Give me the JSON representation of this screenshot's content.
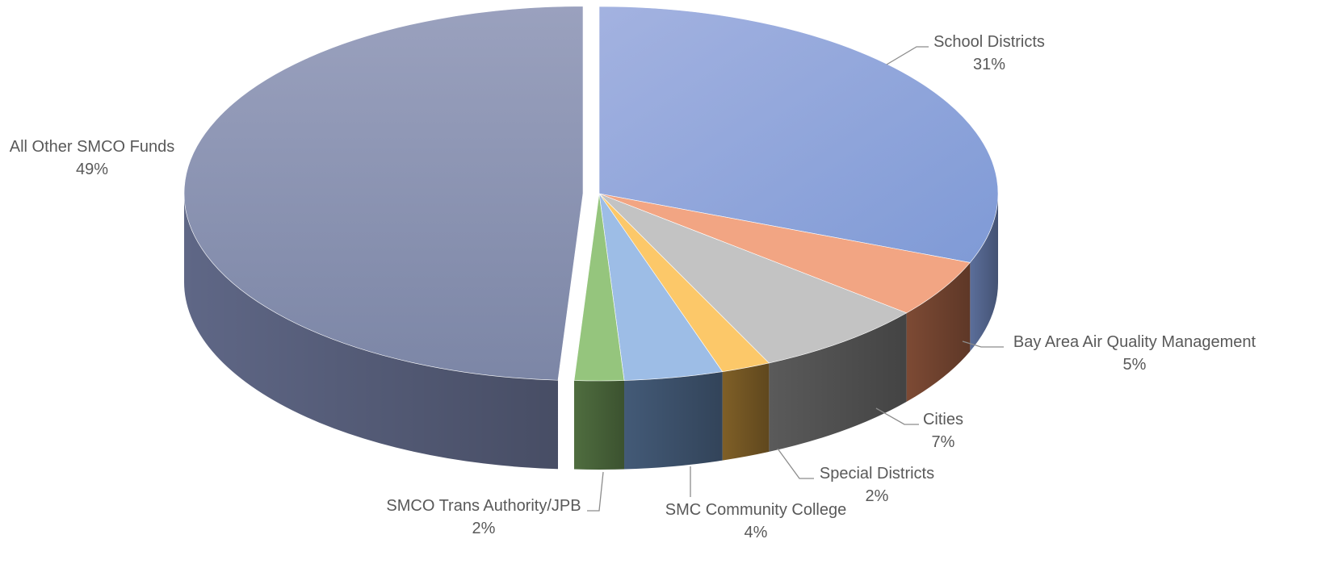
{
  "chart_data": {
    "type": "pie",
    "title": "",
    "slices": [
      {
        "label": "School Districts",
        "value": 31,
        "value_label": "31%",
        "color": "#8fa4dc",
        "side_color": "#5b6e9a"
      },
      {
        "label": "Bay Area Air Quality Management",
        "value": 5,
        "value_label": "5%",
        "color": "#f2a583",
        "side_color": "#7d4a34"
      },
      {
        "label": "Cities",
        "value": 7,
        "value_label": "7%",
        "color": "#c3c3c3",
        "side_color": "#5a5a5a"
      },
      {
        "label": "Special Districts",
        "value": 2,
        "value_label": "2%",
        "color": "#fcc869",
        "side_color": "#7f5f27"
      },
      {
        "label": "SMC Community College",
        "value": 4,
        "value_label": "4%",
        "color": "#9dbde6",
        "side_color": "#435a77"
      },
      {
        "label": "SMCO Trans Authority/JPB",
        "value": 2,
        "value_label": "2%",
        "color": "#95c57d",
        "side_color": "#4f6d3f"
      },
      {
        "label": "All Other SMCO Funds",
        "value": 49,
        "value_label": "49%",
        "color": "#8a93b4",
        "side_color": "#5f6786"
      }
    ],
    "exploded_slice": "All Other SMCO Funds",
    "legend": "none",
    "data_labels": "outside with leader lines"
  }
}
